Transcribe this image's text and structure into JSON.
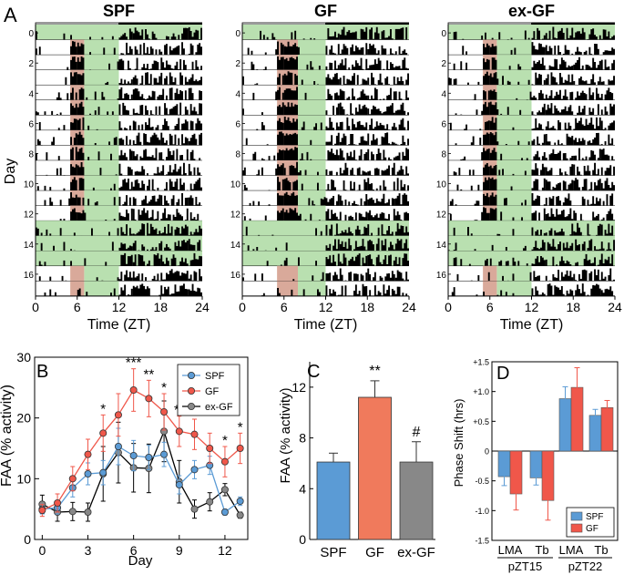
{
  "panel_letters": {
    "A": "A",
    "B": "B",
    "C": "C",
    "D": "D"
  },
  "colors": {
    "spf": "#5b9bd5",
    "gf": "#f0574a",
    "exgf": "#888888",
    "fed": "#d9a99a",
    "light": "#b9e0b0",
    "ink": "#000000"
  },
  "chart_data": [
    {
      "type": "actogram",
      "panel": "A",
      "ylabel": "Day",
      "xlabel": "Time (ZT)",
      "xticks": [
        "0",
        "6",
        "12",
        "18",
        "24"
      ],
      "yticks": [
        "0",
        "2",
        "4",
        "6",
        "8",
        "10",
        "12",
        "14",
        "16"
      ],
      "light_dark_note": "ZT0-12 light (green shading), ZT12-24 dark",
      "groups": [
        {
          "title": "SPF",
          "feeding_window_zt": [
            5,
            7
          ],
          "restricted_days": [
            1,
            12
          ],
          "reshift_days": [
            16,
            17
          ]
        },
        {
          "title": "GF",
          "feeding_window_zt": [
            5,
            8
          ],
          "restricted_days": [
            1,
            12
          ],
          "reshift_days": [
            16,
            17
          ]
        },
        {
          "title": "ex-GF",
          "feeding_window_zt": [
            5,
            7
          ],
          "restricted_days": [
            1,
            12
          ],
          "reshift_days": [
            16,
            17
          ]
        }
      ]
    },
    {
      "type": "line",
      "panel": "B",
      "xlabel": "Day",
      "ylabel": "FAA (% activity)",
      "xlim": [
        -0.5,
        13.5
      ],
      "ylim": [
        0,
        30
      ],
      "xticks": [
        "0",
        "3",
        "6",
        "9",
        "12"
      ],
      "yticks": [
        "0",
        "10",
        "20",
        "30"
      ],
      "legend": "top-right",
      "x": [
        0,
        1,
        2,
        3,
        4,
        5,
        6,
        7,
        8,
        9,
        10,
        11,
        12,
        13
      ],
      "series": [
        {
          "name": "SPF",
          "values": [
            5.0,
            5.2,
            8.5,
            10.8,
            11.0,
            15.3,
            13.8,
            13.5,
            14.0,
            9.0,
            11.5,
            12.2,
            4.5,
            6.3
          ],
          "err": [
            0.8,
            1.0,
            1.5,
            1.8,
            2.0,
            3.0,
            2.5,
            2.0,
            2.0,
            1.5,
            1.5,
            1.5,
            0.5,
            0.7
          ]
        },
        {
          "name": "GF",
          "values": [
            4.8,
            6.0,
            10.0,
            14.0,
            17.5,
            20.5,
            24.6,
            23.2,
            21.0,
            17.8,
            17.3,
            15.0,
            12.8,
            15.0
          ],
          "err": [
            1.0,
            1.5,
            2.0,
            2.5,
            3.0,
            3.5,
            3.5,
            3.0,
            3.0,
            2.5,
            2.5,
            2.5,
            2.5,
            2.5
          ]
        },
        {
          "name": "ex-GF",
          "values": [
            5.8,
            4.5,
            4.6,
            4.5,
            10.8,
            14.3,
            11.8,
            11.7,
            17.8,
            9.5,
            5.0,
            6.2,
            8.2,
            4.0
          ],
          "err": [
            1.5,
            1.5,
            1.5,
            1.5,
            4.5,
            5.0,
            4.0,
            4.0,
            5.0,
            3.5,
            1.5,
            1.5,
            1.0,
            0.5
          ]
        }
      ],
      "annotations": [
        {
          "x": 4,
          "text": "*"
        },
        {
          "x": 6,
          "text": "***"
        },
        {
          "x": 7,
          "text": "**"
        },
        {
          "x": 8,
          "text": "*"
        },
        {
          "x": 9,
          "text": "**"
        },
        {
          "x": 10,
          "text": "*"
        },
        {
          "x": 12,
          "text": "*"
        },
        {
          "x": 13,
          "text": "*"
        }
      ]
    },
    {
      "type": "bar",
      "panel": "C",
      "ylabel": "FAA (% activity)",
      "ylim": [
        0,
        14
      ],
      "yticks": [
        "0",
        "4",
        "8",
        "12"
      ],
      "categories": [
        "SPF",
        "GF",
        "ex-GF"
      ],
      "values": [
        6.1,
        11.2,
        6.1
      ],
      "err": [
        0.7,
        1.3,
        1.6
      ],
      "annotations": [
        "",
        "**",
        "#"
      ]
    },
    {
      "type": "bar",
      "panel": "D",
      "ylabel": "Phase Shift (hrs)",
      "ylim": [
        -1.5,
        1.5
      ],
      "yticks": [
        "+1.5",
        "+1.0",
        "+0.5",
        "0",
        "-0.5",
        "-1.0",
        "-1.5"
      ],
      "categories": [
        "LMA",
        "Tb",
        "LMA",
        "Tb"
      ],
      "groups": [
        "pZT15",
        "pZT22"
      ],
      "legend": "bottom-right",
      "series": [
        {
          "name": "SPF",
          "values": [
            -0.43,
            -0.45,
            0.88,
            0.6
          ],
          "err": [
            0.15,
            0.12,
            0.2,
            0.1
          ]
        },
        {
          "name": "GF",
          "values": [
            -0.72,
            -0.83,
            1.07,
            0.73
          ],
          "err": [
            0.27,
            0.33,
            0.33,
            0.12
          ]
        }
      ]
    }
  ]
}
